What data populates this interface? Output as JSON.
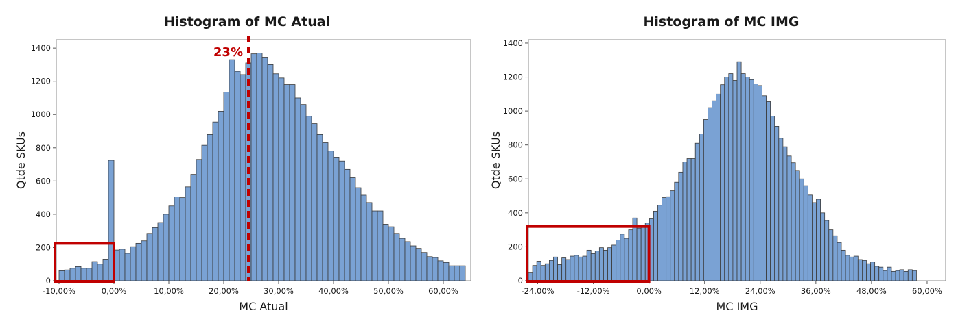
{
  "chart_data": [
    {
      "type": "bar",
      "title": "Histogram of MC Atual",
      "xlabel": "MC Atual",
      "ylabel": "Qtde SKUs",
      "xlim": [
        -10.5,
        65
      ],
      "ylim": [
        0,
        1450
      ],
      "bin_width": 1,
      "bin_start": -10,
      "x_ticks": [
        -10,
        0,
        10,
        20,
        30,
        40,
        50,
        60
      ],
      "x_tick_labels": [
        "-10,00%",
        "0,00%",
        "10,00%",
        "20,00%",
        "30,00%",
        "40,00%",
        "50,00%",
        "60,00%"
      ],
      "y_ticks": [
        0,
        200,
        400,
        600,
        800,
        1000,
        1200,
        1400
      ],
      "y_tick_labels": [
        "0",
        "200",
        "400",
        "600",
        "800",
        "1000",
        "1200",
        "1400"
      ],
      "values": [
        60,
        65,
        75,
        85,
        75,
        75,
        115,
        100,
        130,
        725,
        185,
        190,
        165,
        205,
        225,
        240,
        285,
        320,
        350,
        400,
        450,
        505,
        500,
        565,
        640,
        730,
        815,
        880,
        955,
        1020,
        1135,
        1330,
        1260,
        1240,
        1310,
        1365,
        1370,
        1345,
        1300,
        1245,
        1220,
        1180,
        1180,
        1100,
        1060,
        990,
        945,
        880,
        830,
        780,
        740,
        720,
        670,
        620,
        560,
        515,
        470,
        420,
        420,
        340,
        325,
        285,
        255,
        235,
        210,
        195,
        170,
        145,
        140,
        120,
        110,
        90,
        90,
        90
      ],
      "highlight_box": {
        "x_range": [
          -10.5,
          0
        ],
        "y_max": 225
      },
      "reference_line": {
        "x": 24.5,
        "label": "23%"
      },
      "grid": false,
      "legend": "none",
      "bar_color": "#7aa2d4"
    },
    {
      "type": "bar",
      "title": "Histogram of MC IMG",
      "xlabel": "MC IMG",
      "ylabel": "Qtde SKUs",
      "xlim": [
        -26,
        64
      ],
      "ylim": [
        0,
        1420
      ],
      "bin_width": 0.9,
      "bin_start": -26,
      "x_ticks": [
        -24,
        -12,
        0,
        12,
        24,
        36,
        48,
        60
      ],
      "x_tick_labels": [
        "-24,00%",
        "-12,00%",
        "0,00%",
        "12,00%",
        "24,00%",
        "36,00%",
        "48,00%",
        "60,00%"
      ],
      "y_ticks": [
        0,
        200,
        400,
        600,
        800,
        1000,
        1200,
        1400
      ],
      "y_tick_labels": [
        "0",
        "200",
        "400",
        "600",
        "800",
        "1000",
        "1200",
        "1400"
      ],
      "values": [
        50,
        90,
        115,
        90,
        100,
        120,
        140,
        95,
        135,
        125,
        145,
        150,
        140,
        145,
        180,
        160,
        175,
        195,
        180,
        195,
        210,
        240,
        275,
        250,
        300,
        370,
        310,
        320,
        340,
        365,
        410,
        445,
        490,
        495,
        530,
        580,
        640,
        700,
        720,
        720,
        810,
        865,
        950,
        1020,
        1060,
        1100,
        1155,
        1200,
        1220,
        1180,
        1290,
        1220,
        1200,
        1185,
        1160,
        1150,
        1090,
        1055,
        970,
        910,
        840,
        790,
        735,
        695,
        650,
        600,
        560,
        505,
        460,
        480,
        400,
        355,
        300,
        265,
        225,
        180,
        150,
        140,
        145,
        125,
        120,
        100,
        110,
        85,
        80,
        60,
        80,
        55,
        60,
        65,
        55,
        65,
        60
      ],
      "highlight_box": {
        "x_range": [
          -26,
          0
        ],
        "y_max": 320
      },
      "grid": false,
      "legend": "none",
      "bar_color": "#7aa2d4"
    }
  ]
}
